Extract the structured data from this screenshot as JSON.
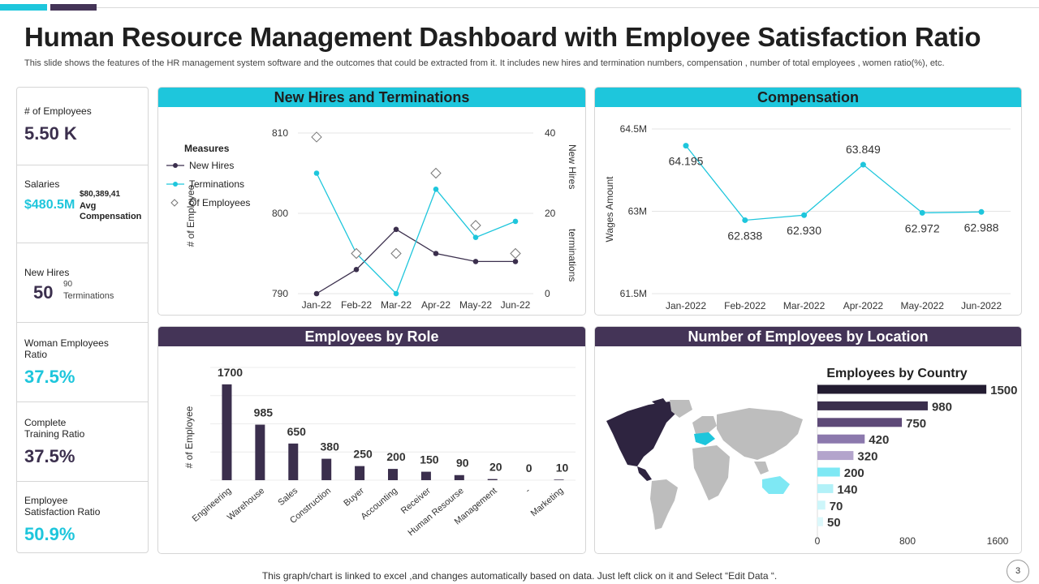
{
  "title": "Human Resource Management Dashboard with Employee Satisfaction Ratio",
  "subtitle": "This slide shows the features of the HR management system software and the outcomes that could be extracted from it. It includes new hires and termination numbers, compensation , number of total employees , women ratio(%), etc.",
  "colors": {
    "cyan": "#1ec6dc",
    "purple": "#443457",
    "dark": "#3b2f4d"
  },
  "kpis": {
    "employees": {
      "label": "# of Employees",
      "value": "5.50 K"
    },
    "salaries": {
      "label": "Salaries",
      "value": "$480.5M",
      "sub_value": "$80,389,41",
      "sub_label": "Avg Compensation"
    },
    "new_hires": {
      "label": "New Hires",
      "value": "50",
      "sub_value": "90",
      "sub_label": "Terminations"
    },
    "woman_ratio": {
      "label": "Woman Employees Ratio",
      "value": "37.5%"
    },
    "training_ratio": {
      "label": "Complete Training Ratio",
      "value": "37.5%"
    },
    "satisfaction_ratio": {
      "label": "Employee Satisfaction Ratio",
      "value": "50.9%"
    }
  },
  "panels": {
    "hires": "New Hires and Terminations",
    "compensation": "Compensation",
    "role": "Employees by Role",
    "location": "Number of Employees by Location"
  },
  "footer": "This graph/chart is linked to excel ,and changes automatically based on data. Just left click on it and Select “Edit Data “.",
  "page_number": "3",
  "chart_data": [
    {
      "id": "hires_terminations",
      "type": "line",
      "title": "New Hires and Terminations",
      "categories": [
        "Jan-22",
        "Feb-22",
        "Mar-22",
        "Apr-22",
        "May-22",
        "Jun-22"
      ],
      "legend_title": "Measures",
      "ylabel_left": "# of Employee",
      "ylabel_right_top": "New Hires",
      "ylabel_right_bottom": "terminations",
      "left_axis": {
        "min": 790,
        "max": 810,
        "ticks": [
          "790",
          "800",
          "810"
        ]
      },
      "right_axis": {
        "min": 0,
        "max": 40,
        "ticks": [
          "0",
          "20",
          "40"
        ]
      },
      "series": [
        {
          "name": "New Hires",
          "axis": "right",
          "color": "#3b2f4d",
          "values": [
            0,
            6,
            16,
            10,
            8,
            8
          ]
        },
        {
          "name": "Terminations",
          "axis": "right",
          "color": "#1ec6dc",
          "values": [
            30,
            10,
            0,
            26,
            14,
            18
          ]
        },
        {
          "name": "Of Employees",
          "axis": "left",
          "color": "#888888",
          "marker": "diamond",
          "values": [
            809.5,
            795,
            795,
            805,
            798.5,
            795
          ]
        }
      ]
    },
    {
      "id": "compensation",
      "type": "line",
      "title": "Compensation",
      "categories": [
        "Jan-2022",
        "Feb-2022",
        "Mar-2022",
        "Apr-2022",
        "May-2022",
        "Jun-2022"
      ],
      "ylabel": "Wages Amount",
      "ylim": [
        61.5,
        64.5
      ],
      "y_ticks": [
        "61.5M",
        "63M",
        "64.5M"
      ],
      "values": [
        64.195,
        62.838,
        62.93,
        63.849,
        62.972,
        62.988
      ],
      "data_labels": [
        "64.195",
        "62.838",
        "62.930",
        "63.849",
        "62.972",
        "62.988"
      ],
      "color": "#1ec6dc"
    },
    {
      "id": "employees_by_role",
      "type": "bar",
      "title": "Employees by Role",
      "ylabel": "# of Employee",
      "categories": [
        "Engineering",
        "Warehouse",
        "Sales",
        "Construction",
        "Buyer",
        "Accounting",
        "Receiver",
        "Human Resourse",
        "Management",
        "-",
        "Marketing"
      ],
      "values": [
        1700,
        985,
        650,
        380,
        250,
        200,
        150,
        90,
        20,
        0,
        10
      ],
      "ylim": [
        0,
        2000
      ],
      "color": "#3b2f4d"
    },
    {
      "id": "employees_by_country",
      "type": "bar",
      "orientation": "horizontal",
      "title": "Employees by Country",
      "values": [
        1500,
        980,
        750,
        420,
        320,
        200,
        140,
        70,
        50
      ],
      "colors": [
        "#231c31",
        "#3b2f4d",
        "#5e4a78",
        "#8c79ad",
        "#b3a4cc",
        "#7ee8f4",
        "#b2f1f8",
        "#cdf6fa",
        "#dcf8fb"
      ],
      "x_ticks": [
        "0",
        "800",
        "1600"
      ],
      "xlim": [
        0,
        1600
      ]
    }
  ]
}
